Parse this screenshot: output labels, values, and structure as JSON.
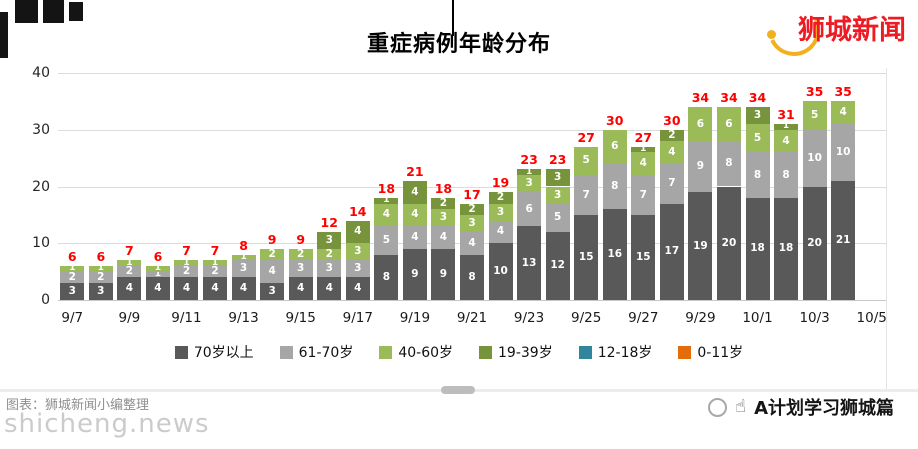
{
  "header": {
    "logo_text": "狮城新闻"
  },
  "chart_data": {
    "type": "bar",
    "stacked": true,
    "title": "重症病例年龄分布",
    "xlabel": "",
    "ylabel": "",
    "ylim": [
      0,
      40
    ],
    "yticks": [
      0,
      10,
      20,
      30,
      40
    ],
    "grid": true,
    "legend_position": "bottom",
    "total_label_color": "#ff0000",
    "categories": [
      "9/7",
      "9/8",
      "9/9",
      "9/10",
      "9/11",
      "9/12",
      "9/13",
      "9/14",
      "9/15",
      "9/16",
      "9/17",
      "9/18",
      "9/19",
      "9/20",
      "9/21",
      "9/22",
      "9/23",
      "9/24",
      "9/25",
      "9/26",
      "9/27",
      "9/28",
      "9/29",
      "9/30",
      "10/1",
      "10/2",
      "10/3",
      "10/4"
    ],
    "x_tick_labels": [
      "9/7",
      "9/9",
      "9/11",
      "9/13",
      "9/15",
      "9/17",
      "9/19",
      "9/21",
      "9/23",
      "9/25",
      "9/27",
      "9/29",
      "10/1",
      "10/3",
      "10/5"
    ],
    "totals": [
      6,
      6,
      7,
      6,
      7,
      7,
      8,
      9,
      9,
      12,
      14,
      18,
      21,
      18,
      17,
      19,
      23,
      23,
      27,
      30,
      27,
      30,
      34,
      34,
      34,
      31,
      35,
      35
    ],
    "series": [
      {
        "name": "70岁以上",
        "color": "#595959",
        "values": [
          3,
          3,
          4,
          4,
          4,
          4,
          4,
          3,
          4,
          4,
          4,
          8,
          9,
          9,
          8,
          10,
          13,
          12,
          15,
          16,
          15,
          17,
          19,
          20,
          18,
          18,
          20,
          21
        ]
      },
      {
        "name": "61-70岁",
        "color": "#a6a6a6",
        "values": [
          2,
          2,
          2,
          1,
          2,
          2,
          3,
          4,
          3,
          3,
          3,
          5,
          4,
          4,
          4,
          4,
          6,
          5,
          7,
          8,
          7,
          7,
          9,
          8,
          8,
          8,
          10,
          10
        ]
      },
      {
        "name": "40-60岁",
        "color": "#9bbb59",
        "values": [
          1,
          1,
          1,
          1,
          1,
          1,
          1,
          2,
          2,
          2,
          3,
          4,
          4,
          3,
          3,
          3,
          3,
          3,
          5,
          6,
          4,
          4,
          6,
          6,
          5,
          4,
          5,
          4
        ]
      },
      {
        "name": "19-39岁",
        "color": "#77933c",
        "values": [
          0,
          0,
          0,
          0,
          0,
          0,
          0,
          0,
          0,
          3,
          4,
          1,
          4,
          2,
          2,
          2,
          1,
          3,
          0,
          0,
          1,
          2,
          0,
          0,
          3,
          1,
          0,
          0
        ]
      },
      {
        "name": "12-18岁",
        "color": "#31859c",
        "values": [
          0,
          0,
          0,
          0,
          0,
          0,
          0,
          0,
          0,
          0,
          0,
          0,
          0,
          0,
          0,
          0,
          0,
          0,
          0,
          0,
          0,
          0,
          0,
          0,
          0,
          0,
          0,
          0
        ]
      },
      {
        "name": "0-11岁",
        "color": "#e46c0a",
        "values": [
          0,
          0,
          0,
          0,
          0,
          0,
          0,
          0,
          0,
          0,
          0,
          0,
          0,
          0,
          0,
          0,
          0,
          0,
          0,
          0,
          0,
          0,
          0,
          0,
          0,
          0,
          0,
          0
        ]
      }
    ]
  },
  "footer": {
    "source_note": "图表：狮城新闻小编整理",
    "watermark": "shicheng.news",
    "hand_icon": "☝",
    "brand": "A计划学习狮城篇"
  }
}
